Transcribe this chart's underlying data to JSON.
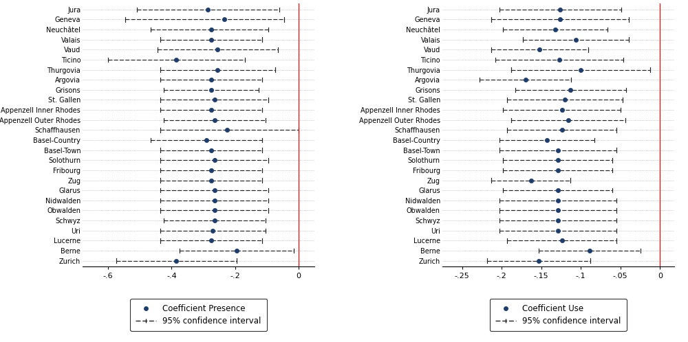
{
  "cantons": [
    "Jura",
    "Geneva",
    "Neuchâtel",
    "Valais",
    "Vaud",
    "Ticino",
    "Thurgovia",
    "Argovia",
    "Grisons",
    "St. Gallen",
    "Appenzell Inner Rhodes",
    "Appenzell Outer Rhodes",
    "Schaffhausen",
    "Basel-Country",
    "Basel-Town",
    "Solothurn",
    "Fribourg",
    "Zug",
    "Glarus",
    "Nidwalden",
    "Obwalden",
    "Schwyz",
    "Uri",
    "Lucerne",
    "Berne",
    "Zurich"
  ],
  "left_coef": [
    -0.285,
    -0.235,
    -0.275,
    -0.275,
    -0.255,
    -0.385,
    -0.255,
    -0.275,
    -0.275,
    -0.265,
    -0.275,
    -0.265,
    -0.225,
    -0.29,
    -0.275,
    -0.265,
    -0.275,
    -0.275,
    -0.265,
    -0.265,
    -0.265,
    -0.265,
    -0.27,
    -0.275,
    -0.195,
    -0.385
  ],
  "left_lo": [
    -0.51,
    -0.545,
    -0.465,
    -0.435,
    -0.445,
    -0.6,
    -0.435,
    -0.435,
    -0.425,
    -0.435,
    -0.435,
    -0.425,
    -0.435,
    -0.465,
    -0.435,
    -0.435,
    -0.435,
    -0.435,
    -0.435,
    -0.435,
    -0.435,
    -0.425,
    -0.435,
    -0.435,
    -0.375,
    -0.575
  ],
  "left_hi": [
    -0.06,
    -0.045,
    -0.095,
    -0.115,
    -0.065,
    -0.17,
    -0.075,
    -0.115,
    -0.125,
    -0.095,
    -0.115,
    -0.105,
    0.0,
    -0.115,
    -0.115,
    -0.095,
    -0.115,
    -0.115,
    -0.095,
    -0.095,
    -0.095,
    -0.105,
    -0.105,
    -0.115,
    -0.015,
    -0.195
  ],
  "right_coef": [
    -0.126,
    -0.126,
    -0.132,
    -0.106,
    -0.152,
    -0.127,
    -0.1,
    -0.17,
    -0.113,
    -0.12,
    -0.124,
    -0.116,
    -0.124,
    -0.143,
    -0.129,
    -0.129,
    -0.129,
    -0.163,
    -0.129,
    -0.129,
    -0.129,
    -0.129,
    -0.129,
    -0.124,
    -0.089,
    -0.153
  ],
  "right_lo": [
    -0.203,
    -0.213,
    -0.198,
    -0.173,
    -0.213,
    -0.208,
    -0.188,
    -0.228,
    -0.183,
    -0.193,
    -0.198,
    -0.188,
    -0.193,
    -0.203,
    -0.203,
    -0.198,
    -0.198,
    -0.213,
    -0.198,
    -0.203,
    -0.203,
    -0.203,
    -0.203,
    -0.193,
    -0.153,
    -0.218
  ],
  "right_hi": [
    -0.049,
    -0.039,
    -0.066,
    -0.039,
    -0.091,
    -0.046,
    -0.012,
    -0.112,
    -0.043,
    -0.047,
    -0.05,
    -0.044,
    -0.055,
    -0.083,
    -0.055,
    -0.06,
    -0.06,
    -0.113,
    -0.06,
    -0.055,
    -0.055,
    -0.055,
    -0.055,
    -0.055,
    -0.025,
    -0.088
  ],
  "left_xlim": [
    -0.68,
    0.05
  ],
  "right_xlim": [
    -0.275,
    0.018
  ],
  "left_xticks": [
    -0.6,
    -0.4,
    -0.2,
    0.0
  ],
  "left_xticklabels": [
    "-.6",
    "-.4",
    "-.2",
    "0"
  ],
  "right_xticks": [
    -0.25,
    -0.2,
    -0.15,
    -0.1,
    -0.05,
    0.0
  ],
  "right_xticklabels": [
    "-.25",
    "-.2",
    "-.15",
    "-.1",
    "-.05",
    "0"
  ],
  "dot_color": "#1f3d6b",
  "ci_color": "#222222",
  "ref_line_color": "#cc2222",
  "bg_dot_color": "#aaaaaa",
  "left_legend_label": "Coefficient Presence",
  "right_legend_label": "Coefficient Use",
  "ci_legend_label": "95% confidence interval"
}
